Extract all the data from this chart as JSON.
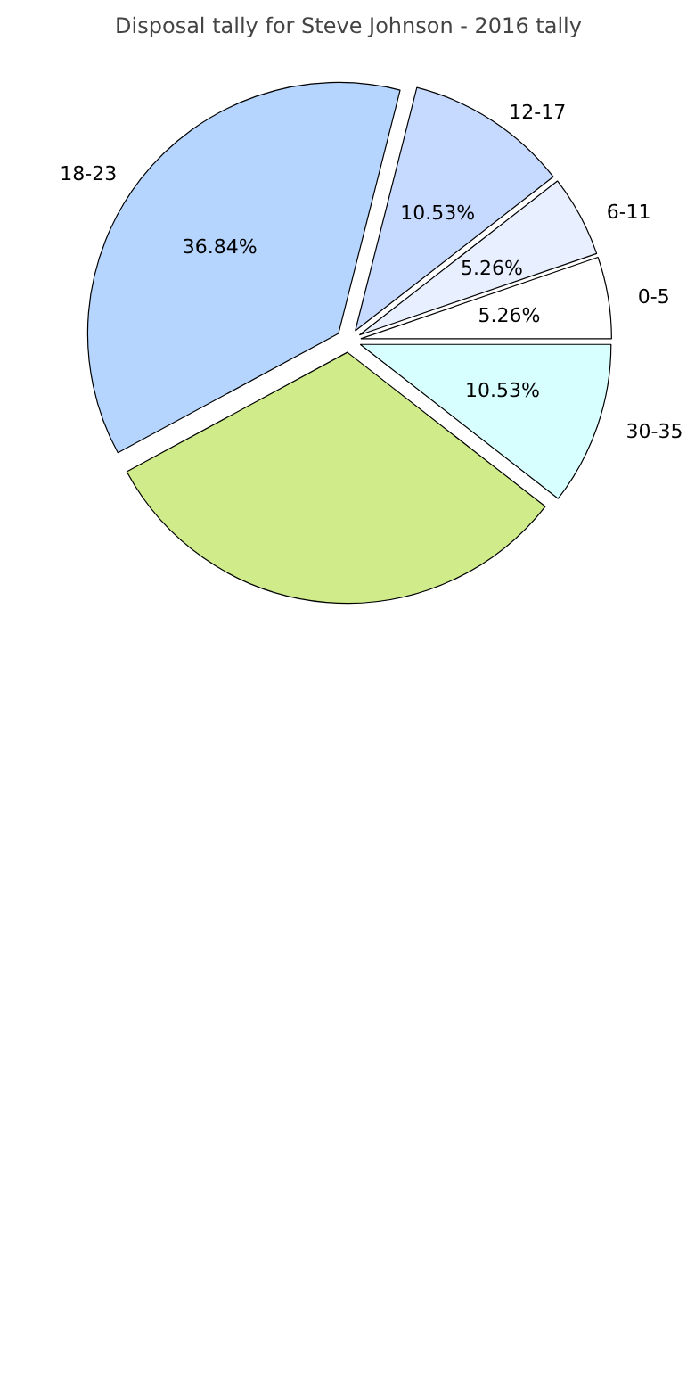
{
  "chart_data": {
    "type": "pie",
    "title": "Disposal tally for Steve Johnson - 2016 tally",
    "categories": [
      "0-5",
      "6-11",
      "12-17",
      "18-23",
      null,
      "30-35"
    ],
    "values": [
      5.26,
      5.26,
      10.53,
      36.84,
      31.58,
      10.53
    ],
    "colors": [
      "#ffffff",
      "#e8f0ff",
      "#c6d9ff",
      "#b5d5ff",
      "#d0ec8a",
      "#d8ffff"
    ],
    "value_labels": [
      "5.26%",
      "5.26%",
      "10.53%",
      "36.84%",
      null,
      "10.53%"
    ]
  }
}
